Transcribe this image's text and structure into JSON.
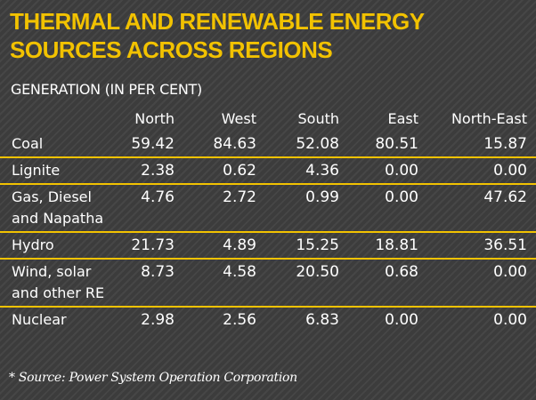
{
  "title_lines": [
    "THERMAL AND RENEWABLE ENERGY",
    "SOURCES ACROSS REGIONS"
  ],
  "subtitle": "GENERATION (IN PER CENT)",
  "source": "* Source: Power System Operation Corporation",
  "colors": {
    "accent": "#f2c200",
    "background": "#3c3c3c",
    "text": "#ffffff"
  },
  "chart_data": {
    "type": "table",
    "title": "THERMAL AND RENEWABLE ENERGY SOURCES ACROSS REGIONS",
    "subtitle": "GENERATION (IN PER CENT)",
    "columns": [
      "North",
      "West",
      "South",
      "East",
      "North-East"
    ],
    "rows": [
      {
        "label": [
          "Coal"
        ],
        "values": [
          "59.42",
          "84.63",
          "52.08",
          "80.51",
          "15.87"
        ]
      },
      {
        "label": [
          "Lignite"
        ],
        "values": [
          "2.38",
          "0.62",
          "4.36",
          "0.00",
          "0.00"
        ]
      },
      {
        "label": [
          "Gas, Diesel",
          "and Napatha"
        ],
        "values": [
          "4.76",
          "2.72",
          "0.99",
          "0.00",
          "47.62"
        ]
      },
      {
        "label": [
          "Hydro"
        ],
        "values": [
          "21.73",
          "4.89",
          "15.25",
          "18.81",
          "36.51"
        ]
      },
      {
        "label": [
          "Wind, solar",
          "and other RE"
        ],
        "values": [
          "8.73",
          "4.58",
          "20.50",
          "0.68",
          "0.00"
        ]
      },
      {
        "label": [
          "Nuclear"
        ],
        "values": [
          "2.98",
          "2.56",
          "6.83",
          "0.00",
          "0.00"
        ]
      }
    ]
  }
}
